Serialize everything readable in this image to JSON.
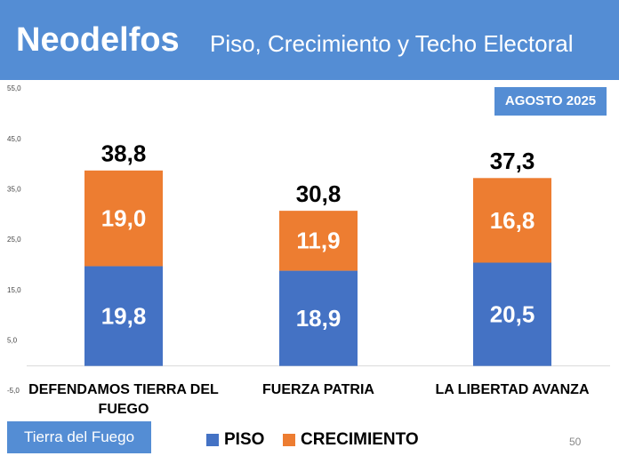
{
  "chart_data": {
    "type": "bar",
    "stacked": true,
    "title": "Neodelfos",
    "subtitle": "Piso, Crecimiento y Techo Electoral",
    "badge": "AGOSTO 2025",
    "footer": "Tierra del Fuego",
    "page_number": 50,
    "categories": [
      "DEFENDAMOS TIERRA DEL FUEGO",
      "FUERZA PATRIA",
      "LA LIBERTAD AVANZA"
    ],
    "series": [
      {
        "name": "PISO",
        "color": "#4472c4",
        "values": [
          19.8,
          18.9,
          20.5
        ],
        "value_labels": [
          "19,8",
          "18,9",
          "20,5"
        ]
      },
      {
        "name": "CRECIMIENTO",
        "color": "#ed7d31",
        "values": [
          19.0,
          11.9,
          16.8
        ],
        "value_labels": [
          "19,0",
          "11,9",
          "16,8"
        ]
      }
    ],
    "totals": [
      38.8,
      30.8,
      37.3
    ],
    "total_labels": [
      "38,8",
      "30,8",
      "37,3"
    ],
    "ylim": [
      -5,
      55
    ],
    "yticks": [
      {
        "value": 55,
        "label": "55,0"
      },
      {
        "value": 45,
        "label": "45,0"
      },
      {
        "value": 35,
        "label": "35,0"
      },
      {
        "value": 25,
        "label": "25,0"
      },
      {
        "value": 15,
        "label": "15,0"
      },
      {
        "value": 5,
        "label": "5,0"
      },
      {
        "value": -5,
        "label": "-5,0"
      }
    ],
    "grid": false
  }
}
